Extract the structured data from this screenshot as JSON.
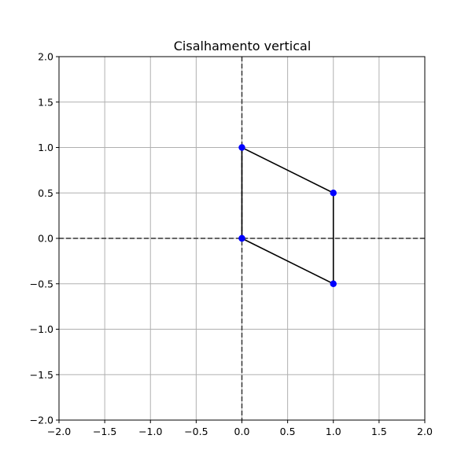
{
  "chart_data": {
    "type": "line",
    "title": "Cisalhamento vertical",
    "xlabel": "",
    "ylabel": "",
    "xlim": [
      -2.0,
      2.0
    ],
    "ylim": [
      -2.0,
      2.0
    ],
    "grid": true,
    "xticks": [
      -2.0,
      -1.5,
      -1.0,
      -0.5,
      0.0,
      0.5,
      1.0,
      1.5,
      2.0
    ],
    "yticks": [
      -2.0,
      -1.5,
      -1.0,
      -0.5,
      0.0,
      0.5,
      1.0,
      1.5,
      2.0
    ],
    "xtick_labels": [
      "−2.0",
      "−1.5",
      "−1.0",
      "−0.5",
      "0.0",
      "0.5",
      "1.0",
      "1.5",
      "2.0"
    ],
    "ytick_labels": [
      "−2.0",
      "−1.5",
      "−1.0",
      "−0.5",
      "0.0",
      "0.5",
      "1.0",
      "1.5",
      "2.0"
    ],
    "reference_lines": [
      {
        "orientation": "horizontal",
        "value": 0.0,
        "style": "dashed"
      },
      {
        "orientation": "vertical",
        "value": 0.0,
        "style": "dashed"
      }
    ],
    "series": [
      {
        "x": [
          0,
          1,
          1,
          0,
          0
        ],
        "y": [
          0,
          -0.5,
          0.5,
          1,
          0
        ],
        "line_color": "#000000",
        "marker_color": "#0000ff"
      }
    ]
  }
}
